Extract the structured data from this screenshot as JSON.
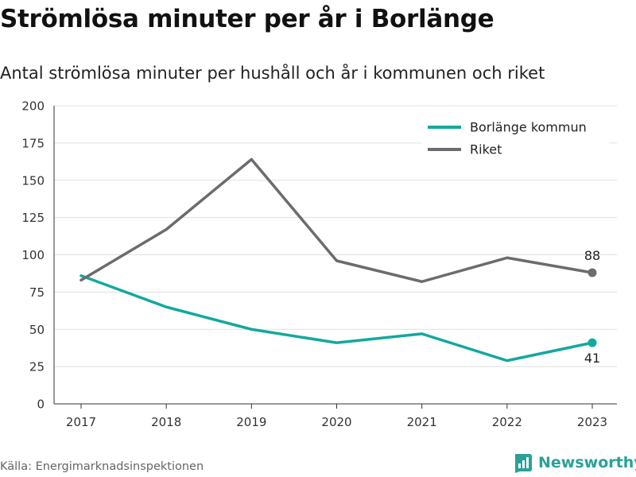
{
  "title": "Strömlösa minuter per år i Borlänge",
  "subtitle": "Antal strömlösa minuter per hushåll och år i kommunen och riket",
  "source": "Källa: Energimarknadsinspektionen",
  "brand": "Newsworthy",
  "colors": {
    "borlange": "#13a89e",
    "riket": "#6b6b70",
    "grid": "#e0e0e0",
    "axis": "#333333"
  },
  "chart_data": {
    "type": "line",
    "x": [
      "2017",
      "2018",
      "2019",
      "2020",
      "2021",
      "2022",
      "2023"
    ],
    "ylim": [
      0,
      200
    ],
    "yticks": [
      0,
      25,
      50,
      75,
      100,
      125,
      150,
      175,
      200
    ],
    "grid": true,
    "legend_position": "top-right",
    "series": [
      {
        "name": "Borlänge kommun",
        "key": "borlange",
        "values": [
          86,
          65,
          50,
          41,
          47,
          29,
          41
        ],
        "end_label": "41"
      },
      {
        "name": "Riket",
        "key": "riket",
        "values": [
          83,
          117,
          164,
          96,
          82,
          98,
          88
        ],
        "end_label": "88"
      }
    ]
  }
}
